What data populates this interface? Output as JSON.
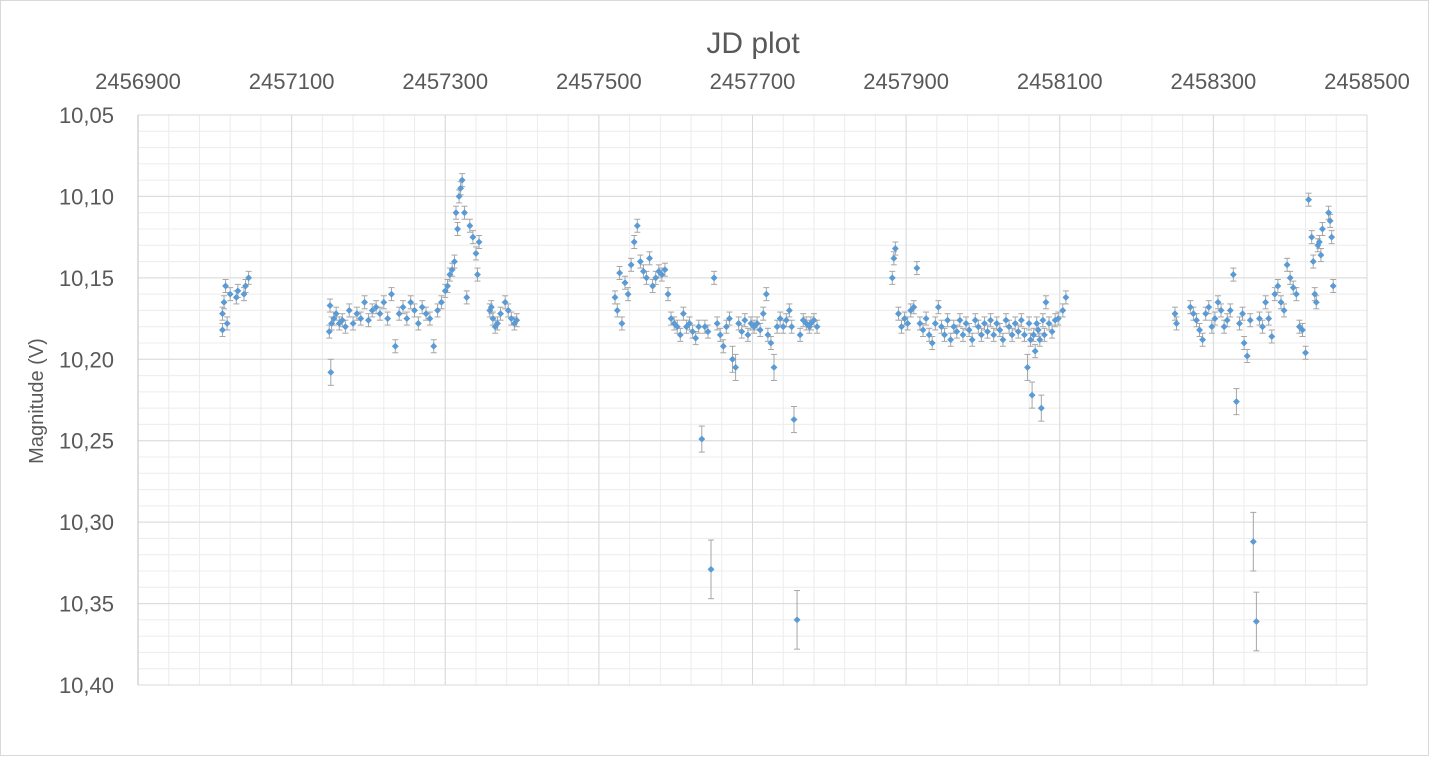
{
  "chart_data": {
    "type": "scatter",
    "title": "JD plot",
    "xlabel": "",
    "ylabel": "Magnitude (V)",
    "x_axis_position": "top",
    "y_axis_reversed": true,
    "xlim": [
      2456900,
      2458500
    ],
    "ylim": [
      10.05,
      10.4
    ],
    "x_major_step": 200,
    "x_minor_step": 40,
    "y_major_step": 0.05,
    "y_minor_step": 0.01,
    "x_tick_labels": [
      "2456900",
      "2457100",
      "2457300",
      "2457500",
      "2457700",
      "2457900",
      "2458100",
      "2458300",
      "2458500"
    ],
    "y_tick_labels": [
      "10,05",
      "10,10",
      "10,15",
      "10,20",
      "10,25",
      "10,30",
      "10,35",
      "10,40"
    ],
    "grid": {
      "major": true,
      "minor": true
    },
    "legend": "none",
    "colors": {
      "marker": "#5b9bd5",
      "error_bar": "#a6a6a6",
      "grid_major": "#d9d9d9",
      "grid_minor": "#ececec",
      "text": "#595959"
    },
    "series": [
      {
        "marker": "diamond",
        "x": [
          2457010,
          2457010,
          2457012,
          2457014,
          2457016,
          2457020,
          2457028,
          2457030,
          2457038,
          2457040,
          2457044,
          2457149,
          2457150,
          2457151,
          2457152,
          2457155,
          2457158,
          2457162,
          2457166,
          2457170,
          2457175,
          2457180,
          2457185,
          2457190,
          2457195,
          2457200,
          2457205,
          2457210,
          2457215,
          2457220,
          2457225,
          2457230,
          2457235,
          2457240,
          2457245,
          2457250,
          2457255,
          2457260,
          2457265,
          2457270,
          2457275,
          2457280,
          2457285,
          2457290,
          2457295,
          2457300,
          2457303,
          2457306,
          2457309,
          2457312,
          2457314,
          2457316,
          2457318,
          2457320,
          2457322,
          2457325,
          2457328,
          2457332,
          2457336,
          2457340,
          2457342,
          2457344,
          2457358,
          2457360,
          2457362,
          2457365,
          2457368,
          2457372,
          2457378,
          2457382,
          2457386,
          2457390,
          2457393,
          2457521,
          2457524,
          2457527,
          2457530,
          2457534,
          2457538,
          2457542,
          2457546,
          2457550,
          2457554,
          2457558,
          2457562,
          2457566,
          2457570,
          2457574,
          2457578,
          2457582,
          2457586,
          2457590,
          2457594,
          2457598,
          2457602,
          2457606,
          2457610,
          2457614,
          2457618,
          2457622,
          2457626,
          2457630,
          2457634,
          2457638,
          2457642,
          2457646,
          2457650,
          2457654,
          2457658,
          2457662,
          2457666,
          2457670,
          2457674,
          2457678,
          2457682,
          2457686,
          2457690,
          2457694,
          2457698,
          2457702,
          2457706,
          2457710,
          2457714,
          2457718,
          2457720,
          2457724,
          2457728,
          2457732,
          2457736,
          2457740,
          2457744,
          2457748,
          2457751,
          2457754,
          2457758,
          2457762,
          2457766,
          2457770,
          2457774,
          2457776,
          2457780,
          2457784,
          2457882,
          2457884,
          2457886,
          2457890,
          2457894,
          2457898,
          2457902,
          2457906,
          2457910,
          2457914,
          2457918,
          2457922,
          2457926,
          2457930,
          2457934,
          2457938,
          2457942,
          2457946,
          2457950,
          2457954,
          2457958,
          2457962,
          2457966,
          2457970,
          2457974,
          2457978,
          2457982,
          2457986,
          2457990,
          2457994,
          2457998,
          2458002,
          2458006,
          2458010,
          2458014,
          2458018,
          2458022,
          2458026,
          2458030,
          2458034,
          2458038,
          2458042,
          2458046,
          2458050,
          2458054,
          2458058,
          2458060,
          2458062,
          2458064,
          2458066,
          2458068,
          2458070,
          2458072,
          2458074,
          2458076,
          2458078,
          2458080,
          2458082,
          2458086,
          2458090,
          2458094,
          2458098,
          2458104,
          2458108,
          2458250,
          2458252,
          2458270,
          2458274,
          2458278,
          2458282,
          2458286,
          2458290,
          2458294,
          2458298,
          2458302,
          2458306,
          2458310,
          2458314,
          2458318,
          2458322,
          2458326,
          2458330,
          2458334,
          2458338,
          2458340,
          2458344,
          2458348,
          2458352,
          2458356,
          2458360,
          2458364,
          2458368,
          2458372,
          2458376,
          2458380,
          2458384,
          2458388,
          2458392,
          2458396,
          2458400,
          2458404,
          2458408,
          2458412,
          2458416,
          2458420,
          2458424,
          2458428,
          2458430,
          2458432,
          2458434,
          2458436,
          2458438,
          2458440,
          2458442,
          2458450,
          2458452,
          2458454,
          2458456
        ],
        "y": [
          10.182,
          10.172,
          10.165,
          10.155,
          10.178,
          10.16,
          10.162,
          10.158,
          10.16,
          10.155,
          10.15,
          10.183,
          10.167,
          10.208,
          10.178,
          10.175,
          10.172,
          10.178,
          10.176,
          10.18,
          10.17,
          10.178,
          10.172,
          10.175,
          10.165,
          10.176,
          10.17,
          10.168,
          10.172,
          10.165,
          10.175,
          10.16,
          10.192,
          10.172,
          10.168,
          10.175,
          10.165,
          10.17,
          10.178,
          10.168,
          10.172,
          10.175,
          10.192,
          10.17,
          10.165,
          10.158,
          10.155,
          10.148,
          10.145,
          10.14,
          10.11,
          10.12,
          10.1,
          10.095,
          10.09,
          10.11,
          10.162,
          10.118,
          10.125,
          10.135,
          10.148,
          10.128,
          10.17,
          10.168,
          10.175,
          10.18,
          10.178,
          10.172,
          10.165,
          10.17,
          10.175,
          10.178,
          10.176,
          10.162,
          10.17,
          10.147,
          10.178,
          10.153,
          10.16,
          10.142,
          10.128,
          10.118,
          10.14,
          10.146,
          10.15,
          10.138,
          10.155,
          10.15,
          10.146,
          10.148,
          10.145,
          10.16,
          10.175,
          10.178,
          10.18,
          10.185,
          10.172,
          10.18,
          10.178,
          10.183,
          10.187,
          10.18,
          10.249,
          10.18,
          10.183,
          10.329,
          10.15,
          10.178,
          10.185,
          10.192,
          10.18,
          10.175,
          10.2,
          10.205,
          10.178,
          10.183,
          10.176,
          10.185,
          10.178,
          10.18,
          10.178,
          10.182,
          10.172,
          10.16,
          10.185,
          10.19,
          10.205,
          10.18,
          10.175,
          10.18,
          10.176,
          10.17,
          10.18,
          10.237,
          10.36,
          10.185,
          10.176,
          10.178,
          10.18,
          10.178,
          10.176,
          10.18,
          10.15,
          10.138,
          10.132,
          10.172,
          10.18,
          10.175,
          10.178,
          10.17,
          10.168,
          10.144,
          10.178,
          10.182,
          10.175,
          10.185,
          10.19,
          10.178,
          10.168,
          10.18,
          10.185,
          10.176,
          10.188,
          10.18,
          10.183,
          10.176,
          10.185,
          10.178,
          10.182,
          10.188,
          10.176,
          10.18,
          10.185,
          10.178,
          10.183,
          10.176,
          10.185,
          10.178,
          10.182,
          10.188,
          10.176,
          10.18,
          10.185,
          10.178,
          10.183,
          10.176,
          10.185,
          10.205,
          10.178,
          10.188,
          10.222,
          10.185,
          10.195,
          10.178,
          10.182,
          10.188,
          10.23,
          10.176,
          10.185,
          10.165,
          10.178,
          10.183,
          10.176,
          10.175,
          10.17,
          10.162,
          10.172,
          10.178,
          10.168,
          10.172,
          10.176,
          10.182,
          10.188,
          10.172,
          10.168,
          10.18,
          10.175,
          10.165,
          10.17,
          10.18,
          10.176,
          10.17,
          10.148,
          10.226,
          10.178,
          10.172,
          10.19,
          10.198,
          10.176,
          10.312,
          10.361,
          10.175,
          10.18,
          10.165,
          10.175,
          10.186,
          10.16,
          10.155,
          10.165,
          10.17,
          10.142,
          10.15,
          10.156,
          10.16,
          10.18,
          10.182,
          10.196,
          10.102,
          10.125,
          10.14,
          10.16,
          10.165,
          10.13,
          10.128,
          10.136,
          10.12,
          10.11,
          10.115,
          10.125,
          10.155
        ]
      }
    ]
  }
}
